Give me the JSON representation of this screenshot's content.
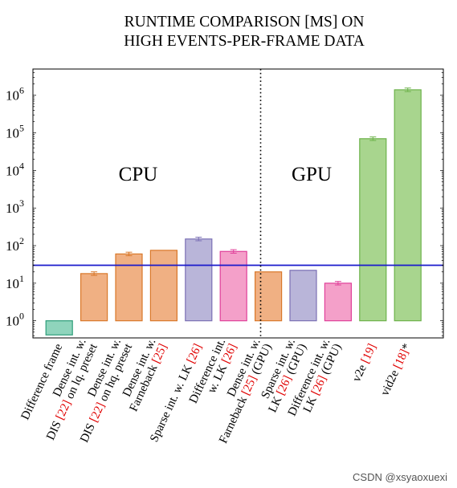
{
  "chart_data": {
    "type": "bar",
    "title_lines": [
      "RUNTIME COMPARISON [MS] ON",
      "HIGH EVENTS-PER-FRAME DATA"
    ],
    "y_scale": "log",
    "ylim": [
      0.35,
      5000000
    ],
    "y_ticks": [
      {
        "value": 1,
        "base": "10",
        "exp": "0"
      },
      {
        "value": 10,
        "base": "10",
        "exp": "1"
      },
      {
        "value": 100,
        "base": "10",
        "exp": "2"
      },
      {
        "value": 1000,
        "base": "10",
        "exp": "3"
      },
      {
        "value": 10000,
        "base": "10",
        "exp": "4"
      },
      {
        "value": 100000,
        "base": "10",
        "exp": "5"
      },
      {
        "value": 1000000,
        "base": "10",
        "exp": "6"
      }
    ],
    "reference_line": 30,
    "group_labels": [
      "CPU",
      "GPU"
    ],
    "categories": [
      {
        "lines": [
          [
            {
              "t": "Difference frame",
              "cite": false
            }
          ]
        ],
        "value": 0.42,
        "fill": "#8fd4bc",
        "stroke": "#2e9e7a",
        "error": false
      },
      {
        "lines": [
          [
            {
              "t": "Dense int. w.",
              "cite": false
            }
          ],
          [
            {
              "t": "DIS ",
              "cite": false
            },
            {
              "t": "[22]",
              "cite": true
            },
            {
              "t": " on lq. preset",
              "cite": false
            }
          ]
        ],
        "value": 18,
        "fill": "#f0b083",
        "stroke": "#d9782a",
        "error": true
      },
      {
        "lines": [
          [
            {
              "t": "Dense int. w.",
              "cite": false
            }
          ],
          [
            {
              "t": "DIS ",
              "cite": false
            },
            {
              "t": "[22]",
              "cite": true
            },
            {
              "t": " on hq. preset",
              "cite": false
            }
          ]
        ],
        "value": 60,
        "fill": "#f0b083",
        "stroke": "#d9782a",
        "error": true
      },
      {
        "lines": [
          [
            {
              "t": "Dense int. w.",
              "cite": false
            }
          ],
          [
            {
              "t": "Farneback ",
              "cite": false
            },
            {
              "t": "[25]",
              "cite": true
            }
          ]
        ],
        "value": 75,
        "fill": "#f0b083",
        "stroke": "#d9782a",
        "error": false
      },
      {
        "lines": [
          [
            {
              "t": "Sparse int. w. LK ",
              "cite": false
            },
            {
              "t": "[26]",
              "cite": true
            }
          ]
        ],
        "value": 150,
        "fill": "#b9b5d9",
        "stroke": "#7b70b5",
        "error": true
      },
      {
        "lines": [
          [
            {
              "t": "Difference int.",
              "cite": false
            }
          ],
          [
            {
              "t": "w. LK ",
              "cite": false
            },
            {
              "t": "[26]",
              "cite": true
            }
          ]
        ],
        "value": 70,
        "fill": "#f4a0c9",
        "stroke": "#e0409a",
        "error": true
      },
      {
        "lines": [
          [
            {
              "t": "Dense int. w.",
              "cite": false
            }
          ],
          [
            {
              "t": "Farneback ",
              "cite": false
            },
            {
              "t": "[25]",
              "cite": true
            },
            {
              "t": " (GPU)",
              "cite": false
            }
          ]
        ],
        "value": 20,
        "fill": "#f0b083",
        "stroke": "#d9782a",
        "error": false
      },
      {
        "lines": [
          [
            {
              "t": "Sparse int. w.",
              "cite": false
            }
          ],
          [
            {
              "t": "LK ",
              "cite": false
            },
            {
              "t": "[26]",
              "cite": true
            },
            {
              "t": " (GPU)",
              "cite": false
            }
          ]
        ],
        "value": 22,
        "fill": "#b9b5d9",
        "stroke": "#7b70b5",
        "error": false
      },
      {
        "lines": [
          [
            {
              "t": "Difference int. w.",
              "cite": false
            }
          ],
          [
            {
              "t": "LK ",
              "cite": false
            },
            {
              "t": "[26]",
              "cite": true
            },
            {
              "t": " (GPU)",
              "cite": false
            }
          ]
        ],
        "value": 10,
        "fill": "#f4a0c9",
        "stroke": "#e0409a",
        "error": true
      },
      {
        "lines": [
          [
            {
              "t": "v2e ",
              "cite": false
            },
            {
              "t": "[19]",
              "cite": true
            }
          ]
        ],
        "value": 70000,
        "fill": "#a8d58e",
        "stroke": "#6db24b",
        "error": true
      },
      {
        "lines": [
          [
            {
              "t": "vid2e ",
              "cite": false
            },
            {
              "t": "[18]",
              "cite": true
            },
            {
              "t": "*",
              "cite": false
            }
          ]
        ],
        "value": 1400000,
        "fill": "#a8d58e",
        "stroke": "#6db24b",
        "error": true
      }
    ],
    "colors": {
      "reference": "#1a1acc",
      "cite": "#e00000",
      "axis": "#000000"
    }
  },
  "watermark": "CSDN @xsyaoxuexi"
}
